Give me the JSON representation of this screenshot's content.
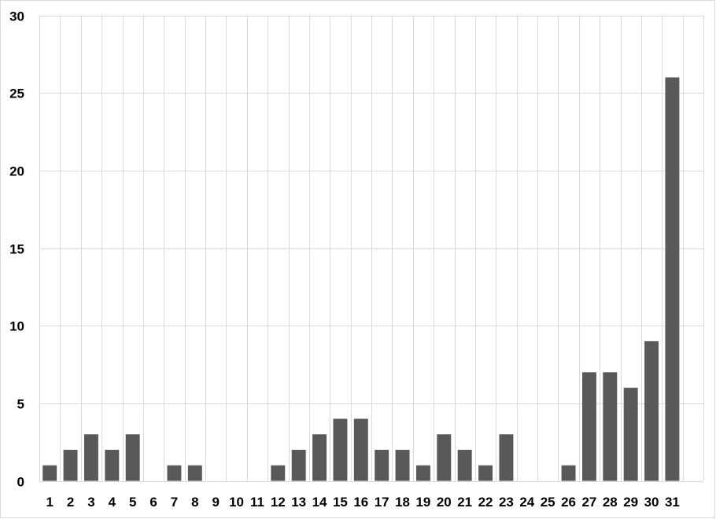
{
  "chart_data": {
    "type": "bar",
    "title": "",
    "xlabel": "",
    "ylabel": "",
    "categories": [
      "1",
      "2",
      "3",
      "4",
      "5",
      "6",
      "7",
      "8",
      "9",
      "10",
      "11",
      "12",
      "13",
      "14",
      "15",
      "16",
      "17",
      "18",
      "19",
      "20",
      "21",
      "22",
      "23",
      "24",
      "25",
      "26",
      "27",
      "28",
      "29",
      "30",
      "31"
    ],
    "values": [
      1,
      2,
      3,
      2,
      3,
      0,
      1,
      1,
      0,
      0,
      0,
      1,
      2,
      3,
      4,
      4,
      2,
      2,
      1,
      3,
      2,
      1,
      3,
      0,
      0,
      1,
      7,
      7,
      6,
      9,
      26
    ],
    "ylim": [
      0,
      30
    ],
    "yticks": [
      "0",
      "5",
      "10",
      "15",
      "20",
      "25",
      "30"
    ],
    "grid": true,
    "bar_color": "#595959",
    "grid_color": "#d9d9d9"
  }
}
